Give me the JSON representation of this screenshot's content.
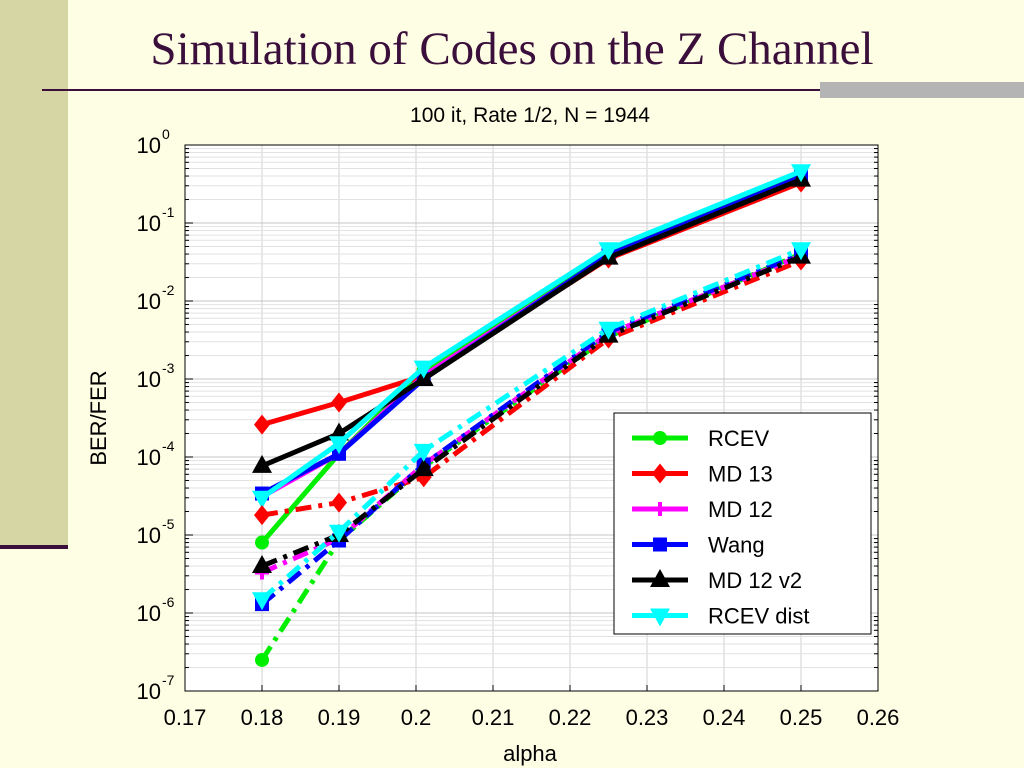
{
  "slide": {
    "title": "Simulation of Codes on the Z Channel",
    "colors": {
      "background": "#fefee4",
      "title": "#3b0f3b",
      "sidebar": "#d6d6a4",
      "accent": "#b4b4b4"
    }
  },
  "chart_data": {
    "type": "line",
    "title": "100 it, Rate 1/2, N = 1944",
    "xlabel": "alpha",
    "ylabel": "BER/FER",
    "xlim": [
      0.17,
      0.26
    ],
    "ylim": [
      1e-07,
      1
    ],
    "yscale": "log",
    "grid": true,
    "legend": "lower-right",
    "x_ticks": [
      "0.17",
      "0.18",
      "0.19",
      "0.2",
      "0.21",
      "0.22",
      "0.23",
      "0.24",
      "0.25",
      "0.26"
    ],
    "y_ticks": [
      {
        "base": "10",
        "exp": "0",
        "value": 1
      },
      {
        "base": "10",
        "exp": "-1",
        "value": 0.1
      },
      {
        "base": "10",
        "exp": "-2",
        "value": 0.01
      },
      {
        "base": "10",
        "exp": "-3",
        "value": 0.001
      },
      {
        "base": "10",
        "exp": "-4",
        "value": 0.0001
      },
      {
        "base": "10",
        "exp": "-5",
        "value": 1e-05
      },
      {
        "base": "10",
        "exp": "-6",
        "value": 1e-06
      },
      {
        "base": "10",
        "exp": "-7",
        "value": 1e-07
      }
    ],
    "legend_entries": [
      {
        "name": "RCEV",
        "color": "#00ee00",
        "marker": "circle"
      },
      {
        "name": "MD 13",
        "color": "#ff0000",
        "marker": "diamond"
      },
      {
        "name": "MD 12",
        "color": "#ff00ff",
        "marker": "plus"
      },
      {
        "name": "Wang",
        "color": "#0000ff",
        "marker": "square"
      },
      {
        "name": "MD 12 v2",
        "color": "#000000",
        "marker": "triangle-up"
      },
      {
        "name": "RCEV dist",
        "color": "#00ffff",
        "marker": "triangle-down"
      }
    ],
    "series": [
      {
        "legend": 0,
        "style": "solid",
        "x": [
          0.18,
          0.19,
          0.201,
          0.225,
          0.25
        ],
        "y": [
          8e-06,
          0.00011,
          0.0013,
          0.045,
          0.42
        ]
      },
      {
        "legend": 1,
        "style": "solid",
        "x": [
          0.18,
          0.19,
          0.201,
          0.225,
          0.25
        ],
        "y": [
          0.00026,
          0.0005,
          0.0011,
          0.035,
          0.33
        ]
      },
      {
        "legend": 2,
        "style": "solid",
        "x": [
          0.18,
          0.19,
          0.201,
          0.225,
          0.25
        ],
        "y": [
          3.1e-05,
          0.00011,
          0.0011,
          0.038,
          0.38
        ]
      },
      {
        "legend": 3,
        "style": "solid",
        "x": [
          0.18,
          0.19,
          0.201,
          0.225,
          0.25
        ],
        "y": [
          3.4e-05,
          0.00011,
          0.001,
          0.039,
          0.39
        ]
      },
      {
        "legend": 4,
        "style": "solid",
        "x": [
          0.18,
          0.19,
          0.201,
          0.225,
          0.25
        ],
        "y": [
          7.7e-05,
          0.0002,
          0.001,
          0.036,
          0.36
        ]
      },
      {
        "legend": 5,
        "style": "solid",
        "x": [
          0.18,
          0.19,
          0.201,
          0.225,
          0.25
        ],
        "y": [
          3e-05,
          0.00015,
          0.0014,
          0.046,
          0.46
        ]
      },
      {
        "legend": 0,
        "style": "dashdot",
        "x": [
          0.18,
          0.19,
          0.201,
          0.225,
          0.25
        ],
        "y": [
          2.5e-07,
          8.5e-06,
          7.5e-05,
          0.0035,
          0.04
        ]
      },
      {
        "legend": 1,
        "style": "dashdot",
        "x": [
          0.18,
          0.19,
          0.201,
          0.225,
          0.25
        ],
        "y": [
          1.8e-05,
          2.6e-05,
          5.5e-05,
          0.0033,
          0.033
        ]
      },
      {
        "legend": 2,
        "style": "dashdot",
        "x": [
          0.18,
          0.19,
          0.201,
          0.225,
          0.25
        ],
        "y": [
          3.3e-06,
          9e-06,
          8e-05,
          0.0038,
          0.038
        ]
      },
      {
        "legend": 3,
        "style": "dashdot",
        "x": [
          0.18,
          0.19,
          0.201,
          0.225,
          0.25
        ],
        "y": [
          1.3e-06,
          8.5e-06,
          8e-05,
          0.004,
          0.04
        ]
      },
      {
        "legend": 4,
        "style": "dashdot",
        "x": [
          0.18,
          0.19,
          0.201,
          0.225,
          0.25
        ],
        "y": [
          4e-06,
          1e-05,
          7e-05,
          0.0036,
          0.037
        ]
      },
      {
        "legend": 5,
        "style": "dashdot",
        "x": [
          0.18,
          0.19,
          0.201,
          0.225,
          0.25
        ],
        "y": [
          1.5e-06,
          1.1e-05,
          0.00012,
          0.0044,
          0.046
        ]
      }
    ]
  }
}
